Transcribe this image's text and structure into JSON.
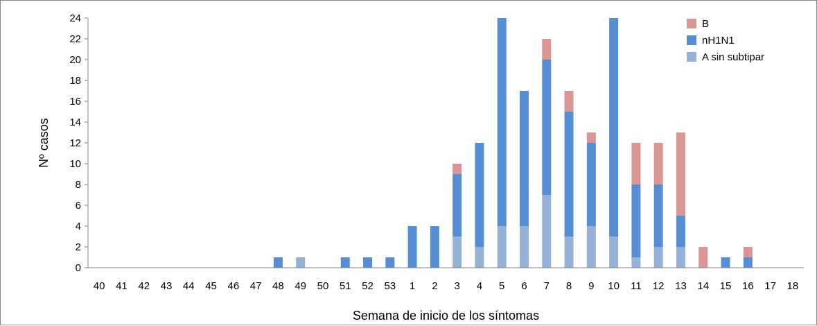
{
  "chart_data": {
    "type": "bar",
    "stacked": true,
    "xlabel": "Semana de inicio de los síntomas",
    "ylabel": "Nº casos",
    "ylim": [
      0,
      24
    ],
    "yticks": [
      0,
      2,
      4,
      6,
      8,
      10,
      12,
      14,
      16,
      18,
      20,
      22,
      24
    ],
    "grid": false,
    "legend_position": "top-right",
    "categories": [
      "40",
      "41",
      "42",
      "43",
      "44",
      "45",
      "46",
      "47",
      "48",
      "49",
      "50",
      "51",
      "52",
      "53",
      "1",
      "2",
      "3",
      "4",
      "5",
      "6",
      "7",
      "8",
      "9",
      "10",
      "11",
      "12",
      "13",
      "14",
      "15",
      "16",
      "17",
      "18"
    ],
    "series": [
      {
        "name": "A sin subtipar",
        "color": "#95b3d7",
        "values": [
          0,
          0,
          0,
          0,
          0,
          0,
          0,
          0,
          0,
          1,
          0,
          0,
          0,
          0,
          0,
          0,
          3,
          2,
          4,
          4,
          7,
          3,
          4,
          3,
          1,
          2,
          2,
          0,
          0,
          0,
          0,
          0
        ]
      },
      {
        "name": "nH1N1",
        "color": "#558ed5",
        "values": [
          0,
          0,
          0,
          0,
          0,
          0,
          0,
          0,
          1,
          0,
          0,
          1,
          1,
          1,
          4,
          4,
          6,
          10,
          20,
          13,
          13,
          12,
          8,
          21,
          7,
          6,
          3,
          0,
          1,
          1,
          0,
          0
        ]
      },
      {
        "name": "B",
        "color": "#d99694",
        "values": [
          0,
          0,
          0,
          0,
          0,
          0,
          0,
          0,
          0,
          0,
          0,
          0,
          0,
          0,
          0,
          0,
          1,
          0,
          0,
          0,
          2,
          2,
          1,
          0,
          4,
          4,
          8,
          2,
          0,
          1,
          0,
          0
        ]
      }
    ]
  }
}
